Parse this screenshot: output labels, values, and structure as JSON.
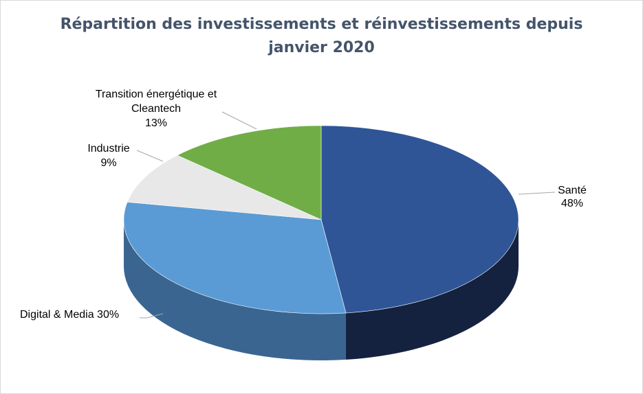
{
  "chart_data": {
    "type": "pie",
    "title_line1": "Répartition des investissements et réinvestissements depuis",
    "title_line2": "janvier 2020",
    "slices": [
      {
        "name": "Santé",
        "value": 48,
        "value_label": "48%",
        "color": "#2f5597",
        "side_color": "#15223f"
      },
      {
        "name": "Digital & Media",
        "value": 30,
        "value_label": "30%",
        "color": "#5b9bd5",
        "side_color": "#3a6591"
      },
      {
        "name": "Industrie",
        "value": 9,
        "value_label": "9%",
        "color": "#e8e8e8",
        "side_color": "#a0a0a0"
      },
      {
        "name": "Transition énergétique et Cleantech",
        "value": 13,
        "value_label": "13%",
        "color": "#70ad47",
        "side_color": "#4a7a2d"
      }
    ],
    "label_lines": {
      "sante_name": "Santé",
      "digital_full": "Digital & Media 30%",
      "industrie_name": "Industrie",
      "transition_1": "Transition énergétique et",
      "transition_2": "Cleantech"
    }
  }
}
